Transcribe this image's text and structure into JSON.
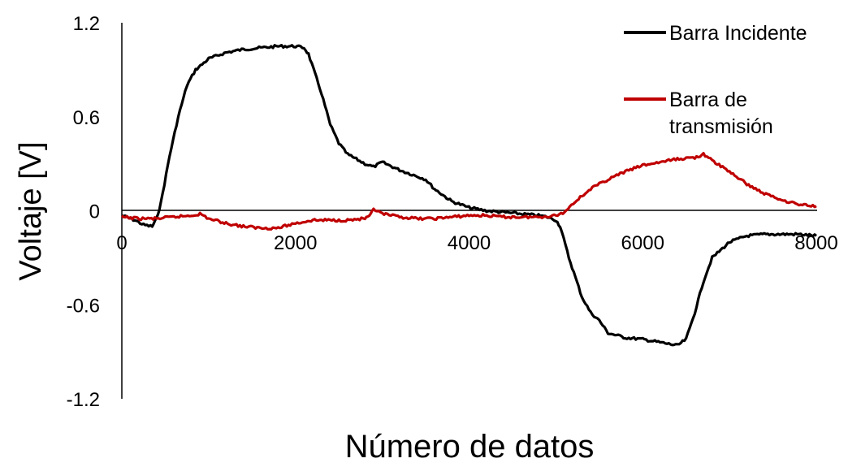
{
  "chart_data": {
    "type": "line",
    "xlabel": "Número de datos",
    "ylabel": "Voltaje [V]",
    "xlim": [
      0,
      8000
    ],
    "ylim": [
      -1.2,
      1.2
    ],
    "x_ticks": [
      "0",
      "2000",
      "4000",
      "6000",
      "8000"
    ],
    "y_ticks": [
      "-1.2",
      "-0.6",
      "0",
      "0.6",
      "1.2"
    ],
    "x_tick_values": [
      0,
      2000,
      4000,
      6000,
      8000
    ],
    "y_tick_values": [
      -1.2,
      -0.6,
      0,
      0.6,
      1.2
    ],
    "grid": false,
    "legend_position": "top-right",
    "series": [
      {
        "name": "Barra Incidente",
        "color": "#000000",
        "x": [
          0,
          150,
          250,
          350,
          400,
          450,
          550,
          650,
          750,
          850,
          1000,
          1200,
          1400,
          1600,
          1800,
          2000,
          2100,
          2150,
          2300,
          2400,
          2500,
          2600,
          2800,
          2900,
          3000,
          3200,
          3400,
          3500,
          3600,
          3800,
          4000,
          4200,
          4400,
          4600,
          4800,
          4900,
          5000,
          5050,
          5150,
          5300,
          5400,
          5500,
          5600,
          5800,
          6000,
          6200,
          6400,
          6500,
          6600,
          6700,
          6800,
          7000,
          7200,
          7400,
          7600,
          7800,
          8000
        ],
        "y": [
          -0.03,
          -0.06,
          -0.09,
          -0.1,
          -0.05,
          0.05,
          0.35,
          0.6,
          0.8,
          0.9,
          0.97,
          1.01,
          1.03,
          1.04,
          1.05,
          1.05,
          1.04,
          1.0,
          0.75,
          0.55,
          0.43,
          0.36,
          0.3,
          0.28,
          0.31,
          0.26,
          0.22,
          0.2,
          0.14,
          0.06,
          0.02,
          0.0,
          -0.01,
          -0.02,
          -0.03,
          -0.04,
          -0.06,
          -0.1,
          -0.3,
          -0.55,
          -0.65,
          -0.7,
          -0.78,
          -0.81,
          -0.82,
          -0.84,
          -0.86,
          -0.82,
          -0.65,
          -0.45,
          -0.3,
          -0.2,
          -0.16,
          -0.15,
          -0.15,
          -0.15,
          -0.16
        ]
      },
      {
        "name": "Barra de transmisión",
        "color": "#c00000",
        "x": [
          0,
          200,
          400,
          600,
          800,
          900,
          1000,
          1200,
          1400,
          1600,
          1800,
          2000,
          2200,
          2400,
          2600,
          2800,
          2850,
          2900,
          3000,
          3200,
          3400,
          3600,
          3800,
          4000,
          4200,
          4400,
          4600,
          4800,
          5000,
          5100,
          5200,
          5400,
          5600,
          5800,
          6000,
          6200,
          6400,
          6600,
          6700,
          6800,
          7000,
          7200,
          7400,
          7600,
          7800,
          8000
        ],
        "y": [
          -0.04,
          -0.05,
          -0.05,
          -0.04,
          -0.03,
          -0.02,
          -0.05,
          -0.08,
          -0.1,
          -0.11,
          -0.11,
          -0.08,
          -0.06,
          -0.06,
          -0.06,
          -0.05,
          -0.04,
          0.01,
          -0.02,
          -0.04,
          -0.05,
          -0.05,
          -0.04,
          -0.03,
          -0.03,
          -0.04,
          -0.04,
          -0.04,
          -0.03,
          -0.01,
          0.05,
          0.14,
          0.2,
          0.25,
          0.29,
          0.31,
          0.33,
          0.34,
          0.36,
          0.32,
          0.25,
          0.17,
          0.11,
          0.07,
          0.04,
          0.03
        ]
      }
    ]
  }
}
